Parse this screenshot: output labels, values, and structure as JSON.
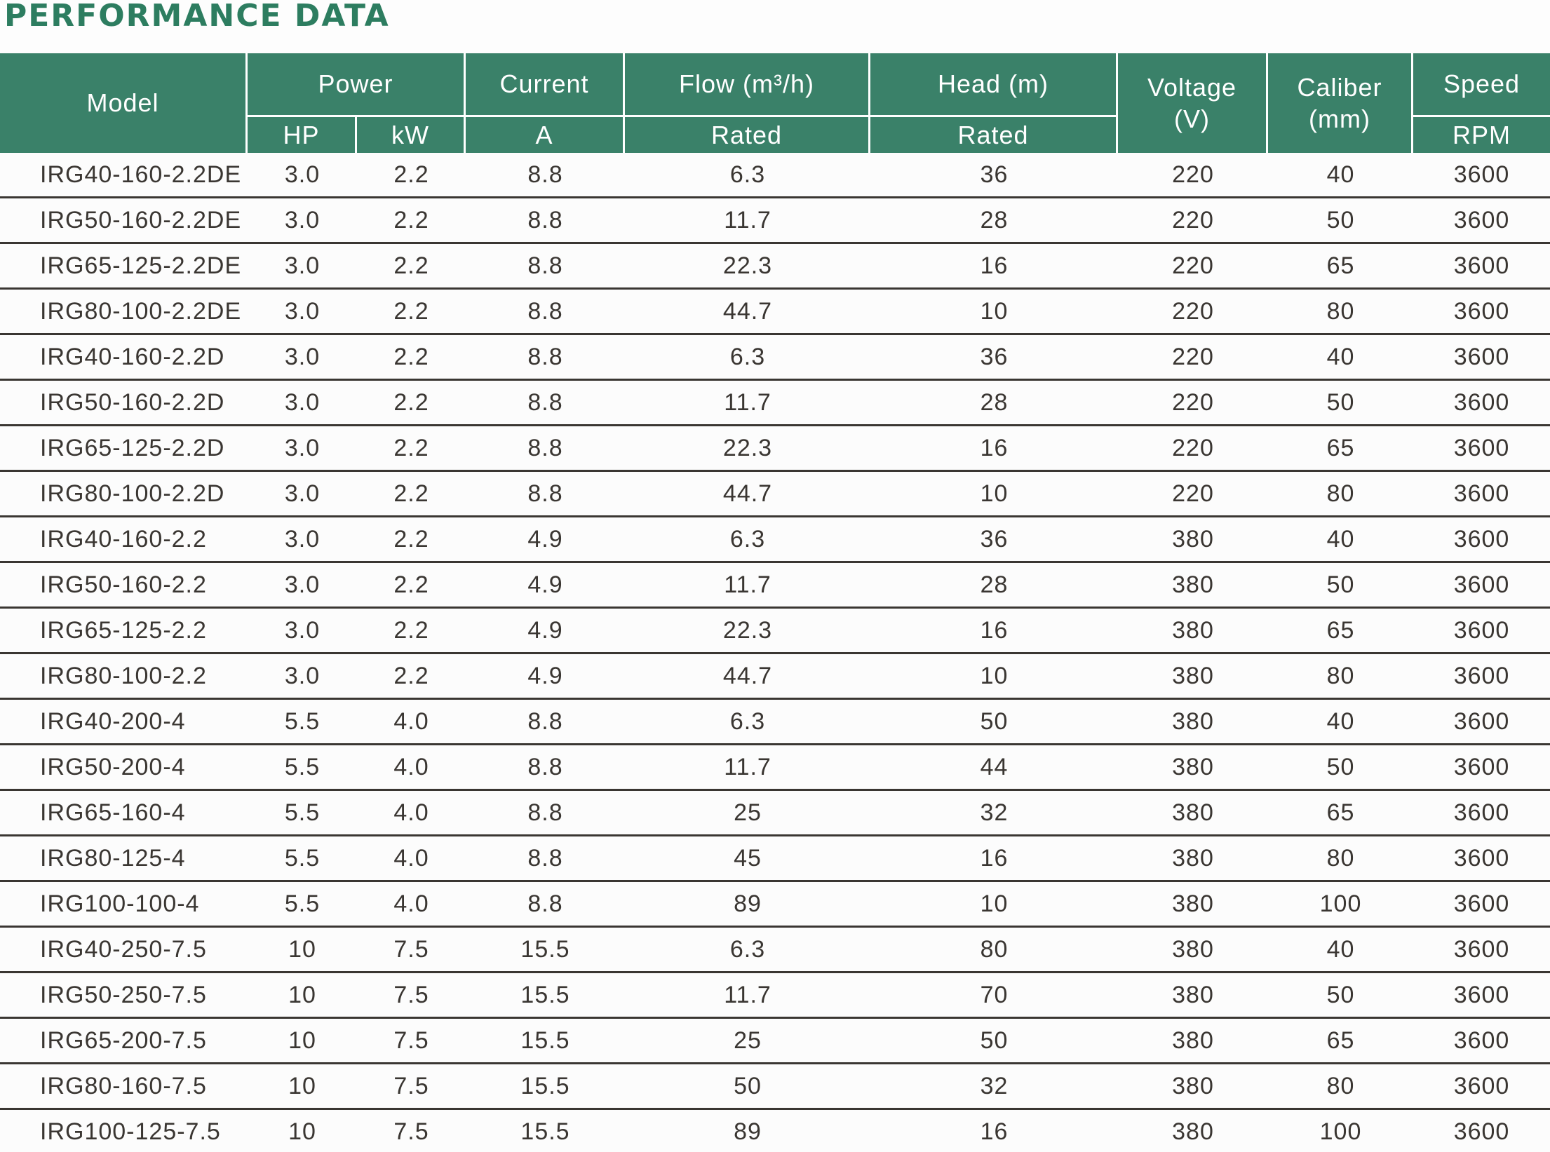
{
  "title": "PERFORMANCE DATA",
  "table": {
    "header": {
      "model": "Model",
      "power": "Power",
      "power_subs": [
        "HP",
        "kW"
      ],
      "current": "Current",
      "current_sub": "A",
      "flow": "Flow (m³/h)",
      "flow_sub": "Rated",
      "head": "Head (m)",
      "head_sub": "Rated",
      "voltage_line1": "Voltage",
      "voltage_line2": "(V)",
      "caliber_line1": "Caliber",
      "caliber_line2": "(mm)",
      "speed": "Speed",
      "speed_sub": "RPM"
    },
    "rows": [
      [
        "IRG40-160-2.2DE",
        "3.0",
        "2.2",
        "8.8",
        "6.3",
        "36",
        "220",
        "40",
        "3600"
      ],
      [
        "IRG50-160-2.2DE",
        "3.0",
        "2.2",
        "8.8",
        "11.7",
        "28",
        "220",
        "50",
        "3600"
      ],
      [
        "IRG65-125-2.2DE",
        "3.0",
        "2.2",
        "8.8",
        "22.3",
        "16",
        "220",
        "65",
        "3600"
      ],
      [
        "IRG80-100-2.2DE",
        "3.0",
        "2.2",
        "8.8",
        "44.7",
        "10",
        "220",
        "80",
        "3600"
      ],
      [
        "IRG40-160-2.2D",
        "3.0",
        "2.2",
        "8.8",
        "6.3",
        "36",
        "220",
        "40",
        "3600"
      ],
      [
        "IRG50-160-2.2D",
        "3.0",
        "2.2",
        "8.8",
        "11.7",
        "28",
        "220",
        "50",
        "3600"
      ],
      [
        "IRG65-125-2.2D",
        "3.0",
        "2.2",
        "8.8",
        "22.3",
        "16",
        "220",
        "65",
        "3600"
      ],
      [
        "IRG80-100-2.2D",
        "3.0",
        "2.2",
        "8.8",
        "44.7",
        "10",
        "220",
        "80",
        "3600"
      ],
      [
        "IRG40-160-2.2",
        "3.0",
        "2.2",
        "4.9",
        "6.3",
        "36",
        "380",
        "40",
        "3600"
      ],
      [
        "IRG50-160-2.2",
        "3.0",
        "2.2",
        "4.9",
        "11.7",
        "28",
        "380",
        "50",
        "3600"
      ],
      [
        "IRG65-125-2.2",
        "3.0",
        "2.2",
        "4.9",
        "22.3",
        "16",
        "380",
        "65",
        "3600"
      ],
      [
        "IRG80-100-2.2",
        "3.0",
        "2.2",
        "4.9",
        "44.7",
        "10",
        "380",
        "80",
        "3600"
      ],
      [
        "IRG40-200-4",
        "5.5",
        "4.0",
        "8.8",
        "6.3",
        "50",
        "380",
        "40",
        "3600"
      ],
      [
        "IRG50-200-4",
        "5.5",
        "4.0",
        "8.8",
        "11.7",
        "44",
        "380",
        "50",
        "3600"
      ],
      [
        "IRG65-160-4",
        "5.5",
        "4.0",
        "8.8",
        "25",
        "32",
        "380",
        "65",
        "3600"
      ],
      [
        "IRG80-125-4",
        "5.5",
        "4.0",
        "8.8",
        "45",
        "16",
        "380",
        "80",
        "3600"
      ],
      [
        "IRG100-100-4",
        "5.5",
        "4.0",
        "8.8",
        "89",
        "10",
        "380",
        "100",
        "3600"
      ],
      [
        "IRG40-250-7.5",
        "10",
        "7.5",
        "15.5",
        "6.3",
        "80",
        "380",
        "40",
        "3600"
      ],
      [
        "IRG50-250-7.5",
        "10",
        "7.5",
        "15.5",
        "11.7",
        "70",
        "380",
        "50",
        "3600"
      ],
      [
        "IRG65-200-7.5",
        "10",
        "7.5",
        "15.5",
        "25",
        "50",
        "380",
        "65",
        "3600"
      ],
      [
        "IRG80-160-7.5",
        "10",
        "7.5",
        "15.5",
        "50",
        "32",
        "380",
        "80",
        "3600"
      ],
      [
        "IRG100-125-7.5",
        "10",
        "7.5",
        "15.5",
        "89",
        "16",
        "380",
        "100",
        "3600"
      ]
    ]
  },
  "colors": {
    "title_green": "#2d7d60",
    "header_green": "#3a8169",
    "header_text": "#ffffff",
    "body_text": "#3a3632",
    "row_line": "#3a3632",
    "background": "#fdfdfd"
  }
}
